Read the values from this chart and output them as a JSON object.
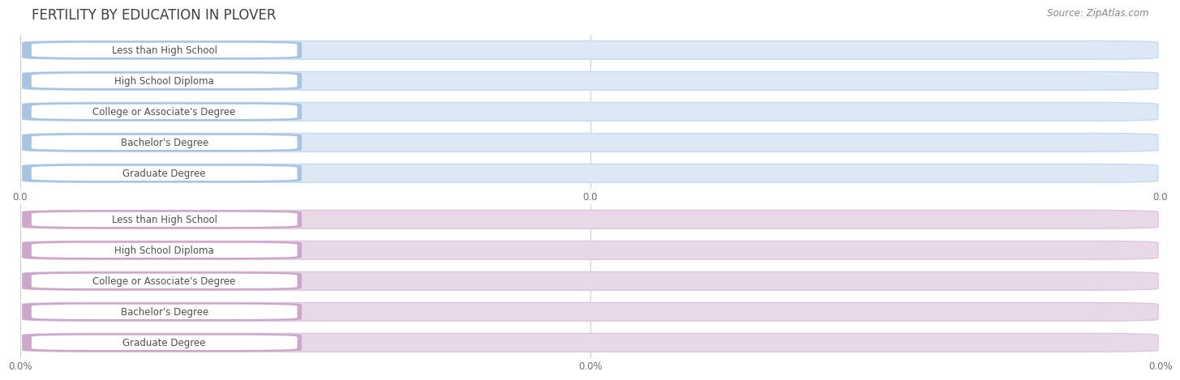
{
  "title": "FERTILITY BY EDUCATION IN PLOVER",
  "source": "Source: ZipAtlas.com",
  "categories": [
    "Less than High School",
    "High School Diploma",
    "College or Associate's Degree",
    "Bachelor's Degree",
    "Graduate Degree"
  ],
  "top_values": [
    0.0,
    0.0,
    0.0,
    0.0,
    0.0
  ],
  "bottom_values": [
    0.0,
    0.0,
    0.0,
    0.0,
    0.0
  ],
  "top_bar_color": "#a8c4e0",
  "top_bar_bg": "#dce8f4",
  "top_bar_border": "#c8daf0",
  "bottom_bar_color": "#cba8c8",
  "bottom_bar_bg": "#e8d8e8",
  "bottom_bar_border": "#dcc8dc",
  "top_fmt": "0.0",
  "bottom_fmt": "0.0%",
  "top_tick_labels": [
    "0.0",
    "0.0",
    "0.0"
  ],
  "bottom_tick_labels": [
    "0.0%",
    "0.0%",
    "0.0%"
  ],
  "background_color": "#ffffff",
  "title_color": "#404040",
  "source_color": "#888888",
  "grid_color": "#d0d0d0",
  "label_text_color": "#505050",
  "value_text_color": "#ffffff",
  "white": "#ffffff"
}
